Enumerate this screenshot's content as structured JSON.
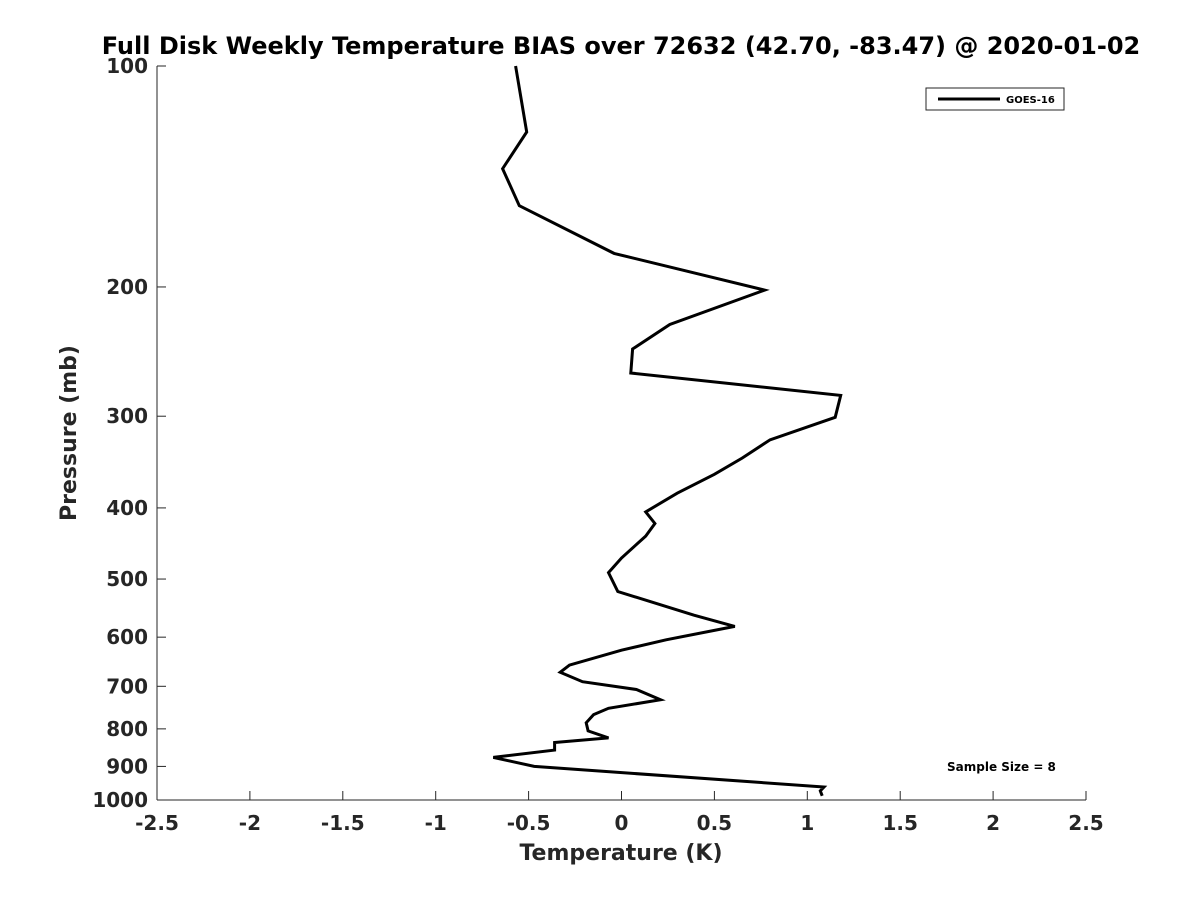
{
  "chart_data": {
    "type": "line",
    "title": "Full Disk Weekly Temperature BIAS over 72632 (42.70, -83.47) @ 2020-01-02",
    "xlabel": "Temperature (K)",
    "ylabel": "Pressure (mb)",
    "xlim": [
      -2.5,
      2.5
    ],
    "ylim": [
      100,
      1000
    ],
    "y_scale": "log",
    "y_reversed": true,
    "grid": false,
    "x_ticks": [
      -2.5,
      -2,
      -1.5,
      -1,
      -0.5,
      0,
      0.5,
      1,
      1.5,
      2,
      2.5
    ],
    "x_tick_labels": [
      "-2.5",
      "-2",
      "-1.5",
      "-1",
      "-0.5",
      "0",
      "0.5",
      "1",
      "1.5",
      "2",
      "2.5"
    ],
    "y_ticks": [
      100,
      200,
      300,
      400,
      500,
      600,
      700,
      800,
      900,
      1000
    ],
    "y_tick_labels": [
      "100",
      "200",
      "300",
      "400",
      "500",
      "600",
      "700",
      "800",
      "900",
      "1000"
    ],
    "legend": {
      "placement": "top-right",
      "entries": [
        "GOES-16"
      ]
    },
    "annotation": "Sample Size = 8",
    "series": [
      {
        "name": "GOES-16",
        "color": "#000000",
        "points": [
          {
            "x": -0.57,
            "p": 100
          },
          {
            "x": -0.51,
            "p": 123
          },
          {
            "x": -0.64,
            "p": 138
          },
          {
            "x": -0.55,
            "p": 155
          },
          {
            "x": -0.04,
            "p": 180
          },
          {
            "x": 0.77,
            "p": 202
          },
          {
            "x": 0.26,
            "p": 225
          },
          {
            "x": 0.06,
            "p": 243
          },
          {
            "x": 0.05,
            "p": 262
          },
          {
            "x": 1.18,
            "p": 281
          },
          {
            "x": 1.15,
            "p": 301
          },
          {
            "x": 0.8,
            "p": 323
          },
          {
            "x": 0.65,
            "p": 342
          },
          {
            "x": 0.5,
            "p": 360
          },
          {
            "x": 0.3,
            "p": 382
          },
          {
            "x": 0.13,
            "p": 405
          },
          {
            "x": 0.18,
            "p": 420
          },
          {
            "x": 0.13,
            "p": 437
          },
          {
            "x": 0.0,
            "p": 468
          },
          {
            "x": -0.07,
            "p": 490
          },
          {
            "x": -0.02,
            "p": 520
          },
          {
            "x": 0.39,
            "p": 560
          },
          {
            "x": 0.61,
            "p": 580
          },
          {
            "x": 0.24,
            "p": 605
          },
          {
            "x": 0.0,
            "p": 625
          },
          {
            "x": -0.28,
            "p": 655
          },
          {
            "x": -0.33,
            "p": 670
          },
          {
            "x": -0.21,
            "p": 690
          },
          {
            "x": 0.08,
            "p": 707
          },
          {
            "x": 0.21,
            "p": 730
          },
          {
            "x": -0.07,
            "p": 750
          },
          {
            "x": -0.15,
            "p": 765
          },
          {
            "x": -0.19,
            "p": 785
          },
          {
            "x": -0.18,
            "p": 805
          },
          {
            "x": -0.07,
            "p": 823
          },
          {
            "x": -0.36,
            "p": 835
          },
          {
            "x": -0.36,
            "p": 855
          },
          {
            "x": -0.69,
            "p": 875
          },
          {
            "x": -0.47,
            "p": 900
          },
          {
            "x": 1.09,
            "p": 960
          },
          {
            "x": 1.07,
            "p": 972
          },
          {
            "x": 1.08,
            "p": 987
          }
        ]
      }
    ]
  }
}
